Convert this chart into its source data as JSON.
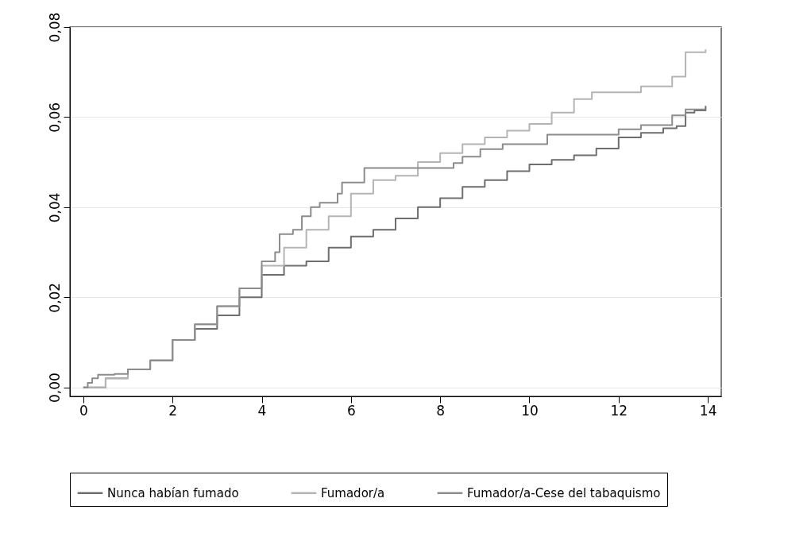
{
  "chart_data": {
    "type": "step",
    "xlim": [
      -0.3,
      14.3
    ],
    "xticks": [
      0,
      2,
      4,
      6,
      8,
      10,
      12,
      14
    ],
    "ylim": [
      -0.002,
      0.08
    ],
    "yticks": [
      {
        "value": 0,
        "label": "0,00"
      },
      {
        "value": 0.02,
        "label": "0,02"
      },
      {
        "value": 0.04,
        "label": "0,04"
      },
      {
        "value": 0.06,
        "label": "0,06"
      },
      {
        "value": 0.08,
        "label": "0,08"
      }
    ],
    "grid": "y",
    "legend": "bottom",
    "line_style": "solid",
    "series": [
      {
        "name": "Nunca habían fumado",
        "color": "#6e6e6e",
        "x": [
          0,
          0.5,
          1,
          1.5,
          2,
          2.5,
          3,
          3.5,
          4,
          4.5,
          5,
          5.5,
          6,
          6.5,
          7,
          7.5,
          8,
          8.5,
          9,
          9.5,
          10,
          10.5,
          11,
          11.5,
          12,
          12.5,
          13,
          13.3,
          13.5,
          13.7,
          13.95
        ],
        "values": [
          0,
          0.002,
          0.004,
          0.006,
          0.0105,
          0.013,
          0.016,
          0.02,
          0.025,
          0.027,
          0.028,
          0.031,
          0.0335,
          0.035,
          0.0375,
          0.04,
          0.042,
          0.0445,
          0.046,
          0.048,
          0.0495,
          0.0505,
          0.0515,
          0.053,
          0.0555,
          0.0565,
          0.0575,
          0.058,
          0.061,
          0.0615,
          0.0625
        ]
      },
      {
        "name": "Fumador/a",
        "color": "#b4b4b4",
        "x": [
          0,
          0.5,
          1,
          1.5,
          2,
          2.5,
          3,
          3.5,
          4,
          4.5,
          5,
          5.5,
          6,
          6.5,
          7,
          7.5,
          8,
          8.5,
          9,
          9.5,
          10,
          10.5,
          11,
          11.4,
          12.5,
          13.2,
          13.5,
          13.95
        ],
        "values": [
          0,
          0.002,
          0.004,
          0.006,
          0.0105,
          0.014,
          0.018,
          0.022,
          0.027,
          0.031,
          0.035,
          0.038,
          0.043,
          0.046,
          0.047,
          0.05,
          0.052,
          0.054,
          0.0555,
          0.057,
          0.0585,
          0.061,
          0.064,
          0.0655,
          0.0668,
          0.069,
          0.0744,
          0.075
        ]
      },
      {
        "name": "Fumador/a-Cese del tabaquismo",
        "color": "#8c8c8c",
        "x": [
          0,
          0.1,
          0.2,
          0.33,
          0.7,
          1,
          1.5,
          2,
          2.5,
          3,
          3.5,
          4,
          4.3,
          4.4,
          4.7,
          4.9,
          5.1,
          5.3,
          5.7,
          5.8,
          6.3,
          8.3,
          8.5,
          8.9,
          9.4,
          10.4,
          12.0,
          12.5,
          13.2,
          13.3,
          13.5,
          13.95
        ],
        "values": [
          0,
          0.001,
          0.002,
          0.0028,
          0.003,
          0.004,
          0.006,
          0.0105,
          0.014,
          0.018,
          0.022,
          0.028,
          0.03,
          0.034,
          0.035,
          0.038,
          0.04,
          0.041,
          0.043,
          0.0455,
          0.0487,
          0.0498,
          0.0512,
          0.0529,
          0.054,
          0.0561,
          0.0573,
          0.0582,
          0.0604,
          0.0604,
          0.0617,
          0.0617
        ]
      }
    ]
  }
}
